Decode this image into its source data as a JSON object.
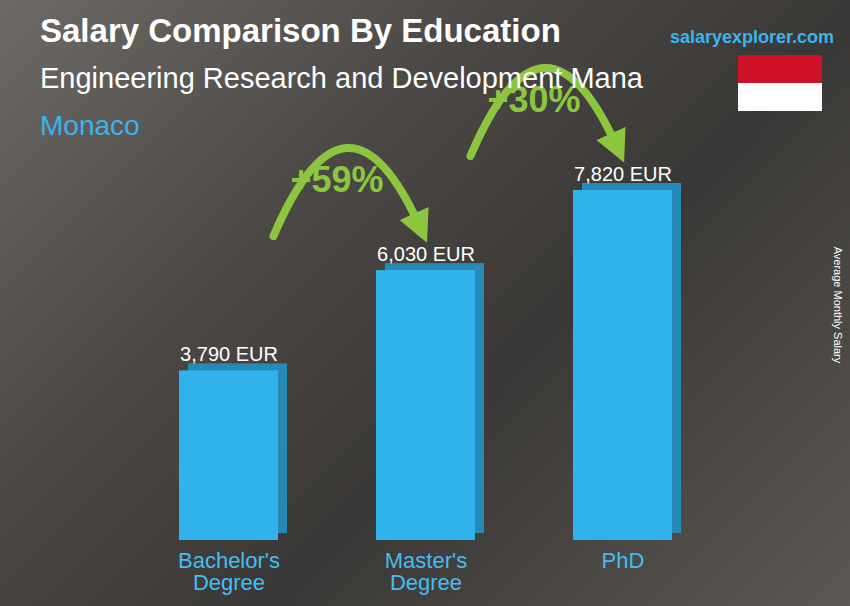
{
  "chart_data": {
    "type": "bar",
    "title": "Salary Comparison By Education",
    "subtitle": "Engineering Research and Development Mana",
    "location": "Monaco",
    "source": "salaryexplorer.com",
    "y_label": "Average Monthly Salary",
    "categories": [
      "Bachelor's Degree",
      "Master's Degree",
      "PhD"
    ],
    "values": [
      3790,
      6030,
      7820
    ],
    "value_labels": [
      "3,790 EUR",
      "6,030 EUR",
      "7,820 EUR"
    ],
    "data_labels": true,
    "color": "#2fb3ea",
    "ylim": [
      0,
      7820
    ],
    "grid": false,
    "tick_labels": "x",
    "annotations": [
      {
        "text": "+59%",
        "from": "Bachelor's Degree",
        "to": "Master's Degree"
      },
      {
        "text": "+30%",
        "from": "Master's Degree",
        "to": "PhD"
      }
    ]
  }
}
